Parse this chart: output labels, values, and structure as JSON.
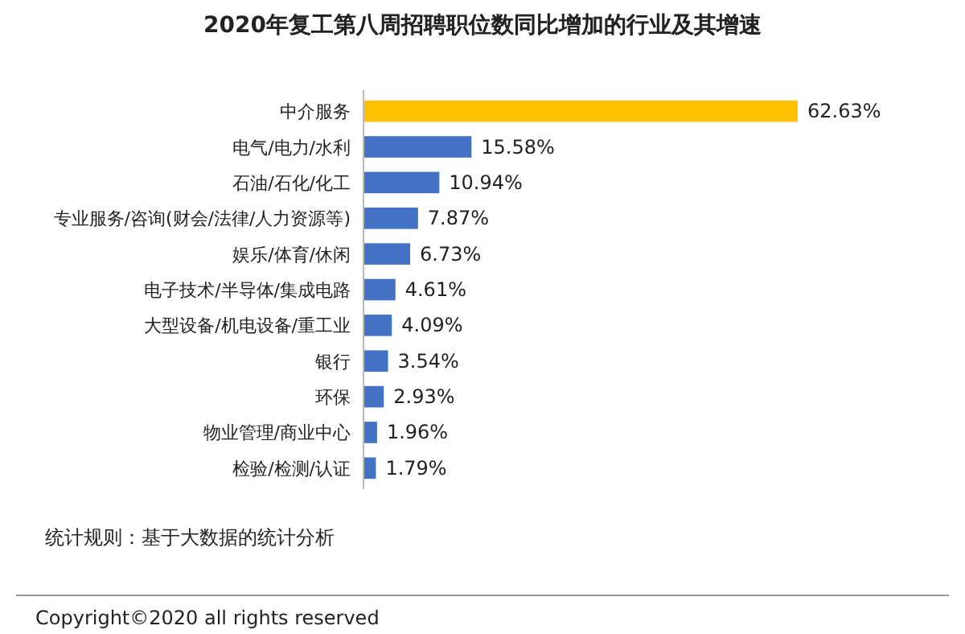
{
  "chart_data": {
    "type": "bar",
    "orientation": "horizontal",
    "title": "2020年复工第八周招聘职位数同比增加的行业及其增速",
    "categories": [
      "中介服务",
      "电气/电力/水利",
      "石油/石化/化工",
      "专业服务/咨询(财会/法律/人力资源等)",
      "娱乐/体育/休闲",
      "电子技术/半导体/集成电路",
      "大型设备/机电设备/重工业",
      "银行",
      "环保",
      "物业管理/商业中心",
      "检验/检测/认证"
    ],
    "values": [
      62.63,
      15.58,
      10.94,
      7.87,
      6.73,
      4.61,
      4.09,
      3.54,
      2.93,
      1.96,
      1.79
    ],
    "value_labels": [
      "62.63%",
      "15.58%",
      "10.94%",
      "7.87%",
      "6.73%",
      "4.61%",
      "4.09%",
      "3.54%",
      "2.93%",
      "1.96%",
      "1.79%"
    ],
    "colors": [
      "#ffc000",
      "#4472c4",
      "#4472c4",
      "#4472c4",
      "#4472c4",
      "#4472c4",
      "#4472c4",
      "#4472c4",
      "#4472c4",
      "#4472c4",
      "#4472c4"
    ],
    "annotations": [
      "统计规则：基于大数据的统计分析",
      "Copyright©2020 all rights reserved"
    ]
  }
}
